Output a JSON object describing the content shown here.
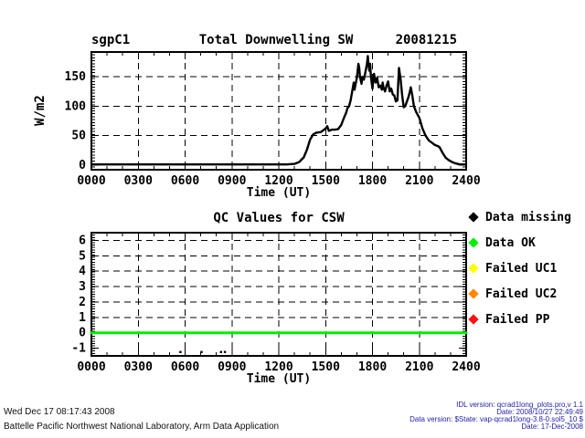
{
  "page": {
    "background": "#ffffff"
  },
  "top_plot": {
    "site": "sgpC1",
    "title": "Total Downwelling SW",
    "date": "20081215",
    "ylabel": "W/m2",
    "xlabel": "Time (UT)"
  },
  "bottom_plot": {
    "title": "QC Values for CSW",
    "xlabel": "Time (UT)"
  },
  "legend": {
    "items": [
      {
        "label": "Data missing",
        "color": "#000000",
        "marker": "diamond-icon"
      },
      {
        "label": "Data OK",
        "color": "#00ee00",
        "marker": "diamond-icon"
      },
      {
        "label": "Failed UC1",
        "color": "#ffff00",
        "marker": "diamond-icon"
      },
      {
        "label": "Failed UC2",
        "color": "#ff8700",
        "marker": "diamond-icon"
      },
      {
        "label": "Failed PP",
        "color": "#ff1010",
        "marker": "diamond-icon"
      }
    ]
  },
  "footer": {
    "left_lines": [
      "Wed Dec 17 08:17:43 2008",
      "Battelle Pacific Northwest National Laboratory, Arm Data Application"
    ],
    "right_lines": [
      "IDL version: qcrad1long_plots.pro,v 1.1",
      "Date: 2008/10/27 22:49:49",
      "Data version: $State: vap-qcrad1long-3.8-0.sol5_10 $",
      "Date: 17-Dec-2008"
    ]
  },
  "chart_data": [
    {
      "type": "line",
      "title": "Total Downwelling SW",
      "site": "sgpC1",
      "date_label": "20081215",
      "xlabel": "Time (UT)",
      "ylabel": "W/m2",
      "xlim": [
        0,
        24
      ],
      "ylim": [
        -8,
        192
      ],
      "xticks": [
        0,
        3,
        6,
        9,
        12,
        15,
        18,
        21,
        24
      ],
      "xtick_labels": [
        "0000",
        "0300",
        "0600",
        "0900",
        "1200",
        "1500",
        "1800",
        "2100",
        "2400"
      ],
      "yticks": [
        0,
        50,
        100,
        150
      ],
      "ytick_labels": [
        "0",
        "50",
        "100",
        "150"
      ],
      "grid": "dashed",
      "legend_position": "none",
      "series": [
        {
          "name": "total_downwelling_sw",
          "color": "#000000",
          "width": 2.4,
          "points": [
            [
              0,
              1
            ],
            [
              0.5,
              1
            ],
            [
              1,
              1
            ],
            [
              1.5,
              1
            ],
            [
              2,
              1
            ],
            [
              2.5,
              1
            ],
            [
              3,
              1
            ],
            [
              3.5,
              1
            ],
            [
              4,
              1
            ],
            [
              4.5,
              1
            ],
            [
              5,
              1
            ],
            [
              5.5,
              1
            ],
            [
              6,
              1
            ],
            [
              6.5,
              1
            ],
            [
              7,
              1
            ],
            [
              7.5,
              1
            ],
            [
              8,
              1
            ],
            [
              8.5,
              1
            ],
            [
              9,
              1
            ],
            [
              9.5,
              1
            ],
            [
              10,
              1
            ],
            [
              10.5,
              1
            ],
            [
              11,
              1
            ],
            [
              11.5,
              1
            ],
            [
              12,
              1
            ],
            [
              12.5,
              1
            ],
            [
              13,
              2
            ],
            [
              13.3,
              5
            ],
            [
              13.6,
              13
            ],
            [
              13.8,
              26
            ],
            [
              14,
              43
            ],
            [
              14.2,
              52
            ],
            [
              14.4,
              55
            ],
            [
              14.7,
              56
            ],
            [
              15,
              62
            ],
            [
              15.1,
              66
            ],
            [
              15.2,
              58
            ],
            [
              15.4,
              60
            ],
            [
              15.6,
              60
            ],
            [
              15.8,
              61
            ],
            [
              16,
              68
            ],
            [
              16.1,
              75
            ],
            [
              16.2,
              82
            ],
            [
              16.3,
              88
            ],
            [
              16.4,
              97
            ],
            [
              16.5,
              100
            ],
            [
              16.6,
              110
            ],
            [
              16.7,
              125
            ],
            [
              16.8,
              140
            ],
            [
              16.85,
              128
            ],
            [
              16.9,
              135
            ],
            [
              17,
              148
            ],
            [
              17.05,
              160
            ],
            [
              17.1,
              172
            ],
            [
              17.15,
              165
            ],
            [
              17.2,
              150
            ],
            [
              17.3,
              138
            ],
            [
              17.35,
              150
            ],
            [
              17.45,
              145
            ],
            [
              17.55,
              158
            ],
            [
              17.65,
              172
            ],
            [
              17.7,
              185
            ],
            [
              17.75,
              170
            ],
            [
              17.8,
              160
            ],
            [
              17.85,
              172
            ],
            [
              17.9,
              150
            ],
            [
              18,
              130
            ],
            [
              18.05,
              145
            ],
            [
              18.1,
              155
            ],
            [
              18.2,
              140
            ],
            [
              18.3,
              148
            ],
            [
              18.4,
              132
            ],
            [
              18.5,
              135
            ],
            [
              18.6,
              128
            ],
            [
              18.65,
              140
            ],
            [
              18.7,
              132
            ],
            [
              18.8,
              125
            ],
            [
              18.9,
              135
            ],
            [
              19,
              142
            ],
            [
              19.1,
              125
            ],
            [
              19.2,
              130
            ],
            [
              19.3,
              120
            ],
            [
              19.4,
              118
            ],
            [
              19.5,
              108
            ],
            [
              19.6,
              110
            ],
            [
              19.65,
              140
            ],
            [
              19.7,
              165
            ],
            [
              19.8,
              145
            ],
            [
              19.9,
              118
            ],
            [
              20,
              98
            ],
            [
              20.1,
              100
            ],
            [
              20.2,
              108
            ],
            [
              20.3,
              115
            ],
            [
              20.4,
              125
            ],
            [
              20.45,
              132
            ],
            [
              20.55,
              118
            ],
            [
              20.65,
              100
            ],
            [
              20.8,
              90
            ],
            [
              21,
              80
            ],
            [
              21.2,
              62
            ],
            [
              21.4,
              50
            ],
            [
              21.6,
              42
            ],
            [
              21.8,
              38
            ],
            [
              22,
              34
            ],
            [
              22.2,
              32
            ],
            [
              22.3,
              30
            ],
            [
              22.5,
              20
            ],
            [
              22.7,
              12
            ],
            [
              22.9,
              8
            ],
            [
              23.1,
              5
            ],
            [
              23.3,
              3
            ],
            [
              23.6,
              1
            ],
            [
              24,
              1
            ]
          ]
        }
      ]
    },
    {
      "type": "line",
      "title": "QC Values for CSW",
      "xlabel": "Time (UT)",
      "ylabel": "",
      "xlim": [
        0,
        24
      ],
      "ylim": [
        -1.5,
        6.5
      ],
      "xticks": [
        0,
        3,
        6,
        9,
        12,
        15,
        18,
        21,
        24
      ],
      "xtick_labels": [
        "0000",
        "0300",
        "0600",
        "0900",
        "1200",
        "1500",
        "1800",
        "2100",
        "2400"
      ],
      "yticks": [
        -1,
        0,
        1,
        2,
        3,
        4,
        5,
        6
      ],
      "ytick_labels": [
        "-1",
        "0",
        "1",
        "2",
        "3",
        "4",
        "5",
        "6"
      ],
      "grid": "dashed",
      "legend_position": "right",
      "series": [
        {
          "name": "qc_data_ok",
          "color": "#00ee00",
          "width": 3,
          "points": [
            [
              0,
              0
            ],
            [
              24,
              0
            ]
          ]
        },
        {
          "name": "qc_data_missing",
          "color": "#000000",
          "marker": "square",
          "points": [
            [
              5.7,
              -1.25
            ],
            [
              7.05,
              -1.25
            ],
            [
              8.3,
              -1.25
            ],
            [
              8.55,
              -1.25
            ]
          ]
        }
      ]
    }
  ]
}
